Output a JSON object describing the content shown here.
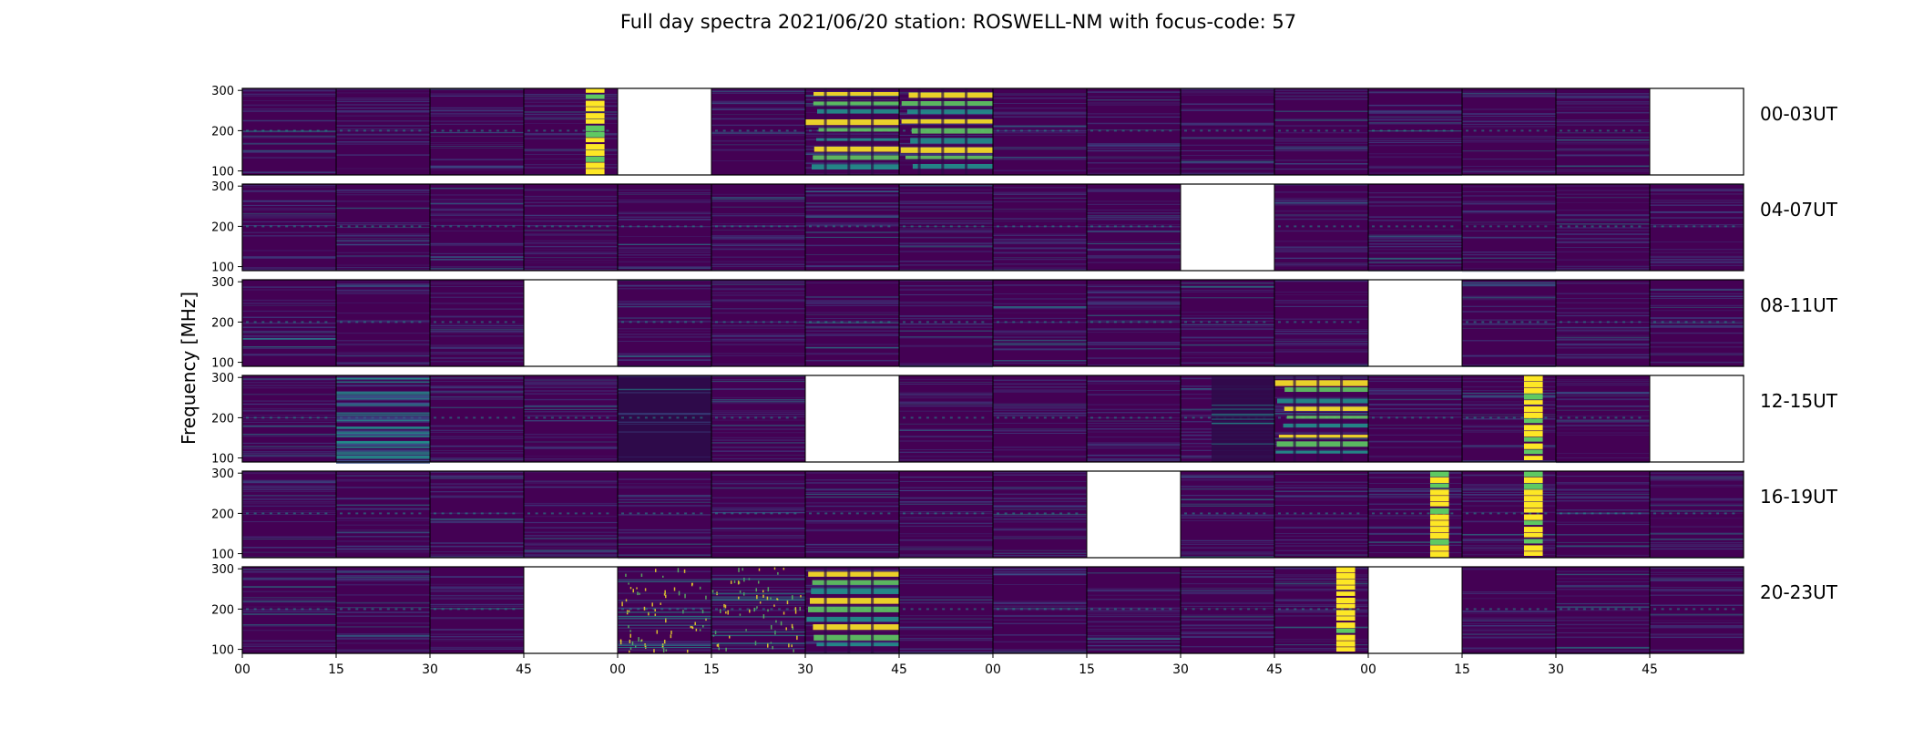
{
  "chart_data": {
    "type": "heatmap",
    "title": "Full day spectra 2021/06/20 station: ROSWELL-NM with focus-code: 57",
    "ylabel": "Frequency [MHz]",
    "xlabel": "",
    "y_ticks": [
      "300",
      "200",
      "100"
    ],
    "y_tick_values": [
      300,
      200,
      100
    ],
    "ylim": [
      90,
      305
    ],
    "x_ticks": [
      "00",
      "15",
      "30",
      "45",
      "00",
      "15",
      "30",
      "45",
      "00",
      "15",
      "30",
      "45",
      "00",
      "15",
      "30",
      "45"
    ],
    "colormap": [
      "#440154",
      "#3b528b",
      "#21918c",
      "#5ec962",
      "#fde725"
    ],
    "rows": [
      {
        "label": "00-03UT",
        "panels": [
          "q",
          "q",
          "q",
          "yellow-narrow",
          "empty",
          "q",
          "bands-heavy",
          "bands-heavy",
          "q",
          "q",
          "q",
          "q",
          "q",
          "q",
          "q",
          "empty"
        ]
      },
      {
        "label": "04-07UT",
        "panels": [
          "q",
          "q",
          "q",
          "q",
          "q",
          "q",
          "q",
          "q",
          "q",
          "q",
          "empty",
          "q",
          "q",
          "q",
          "q",
          "q"
        ]
      },
      {
        "label": "08-11UT",
        "panels": [
          "q",
          "q",
          "q",
          "empty",
          "q",
          "q",
          "q",
          "q",
          "q",
          "q",
          "q",
          "q",
          "empty",
          "q",
          "q",
          "q"
        ]
      },
      {
        "label": "12-15UT",
        "panels": [
          "q",
          "teal-dense",
          "q",
          "q",
          "dark",
          "q",
          "empty",
          "q",
          "q",
          "q",
          "stripes",
          "bands-heavy",
          "q",
          "yellow-narrow",
          "q",
          "empty"
        ]
      },
      {
        "label": "16-19UT",
        "panels": [
          "q",
          "q",
          "q",
          "q",
          "q",
          "q",
          "q",
          "q",
          "q",
          "empty",
          "q",
          "q",
          "yellow-narrow",
          "yellow-narrow",
          "q",
          "q"
        ]
      },
      {
        "label": "20-23UT",
        "panels": [
          "q",
          "q",
          "q",
          "empty",
          "speckle",
          "speckle",
          "bands-heavy",
          "q",
          "q",
          "q",
          "q",
          "yellow-narrow",
          "empty",
          "q",
          "q",
          "q"
        ]
      }
    ]
  }
}
